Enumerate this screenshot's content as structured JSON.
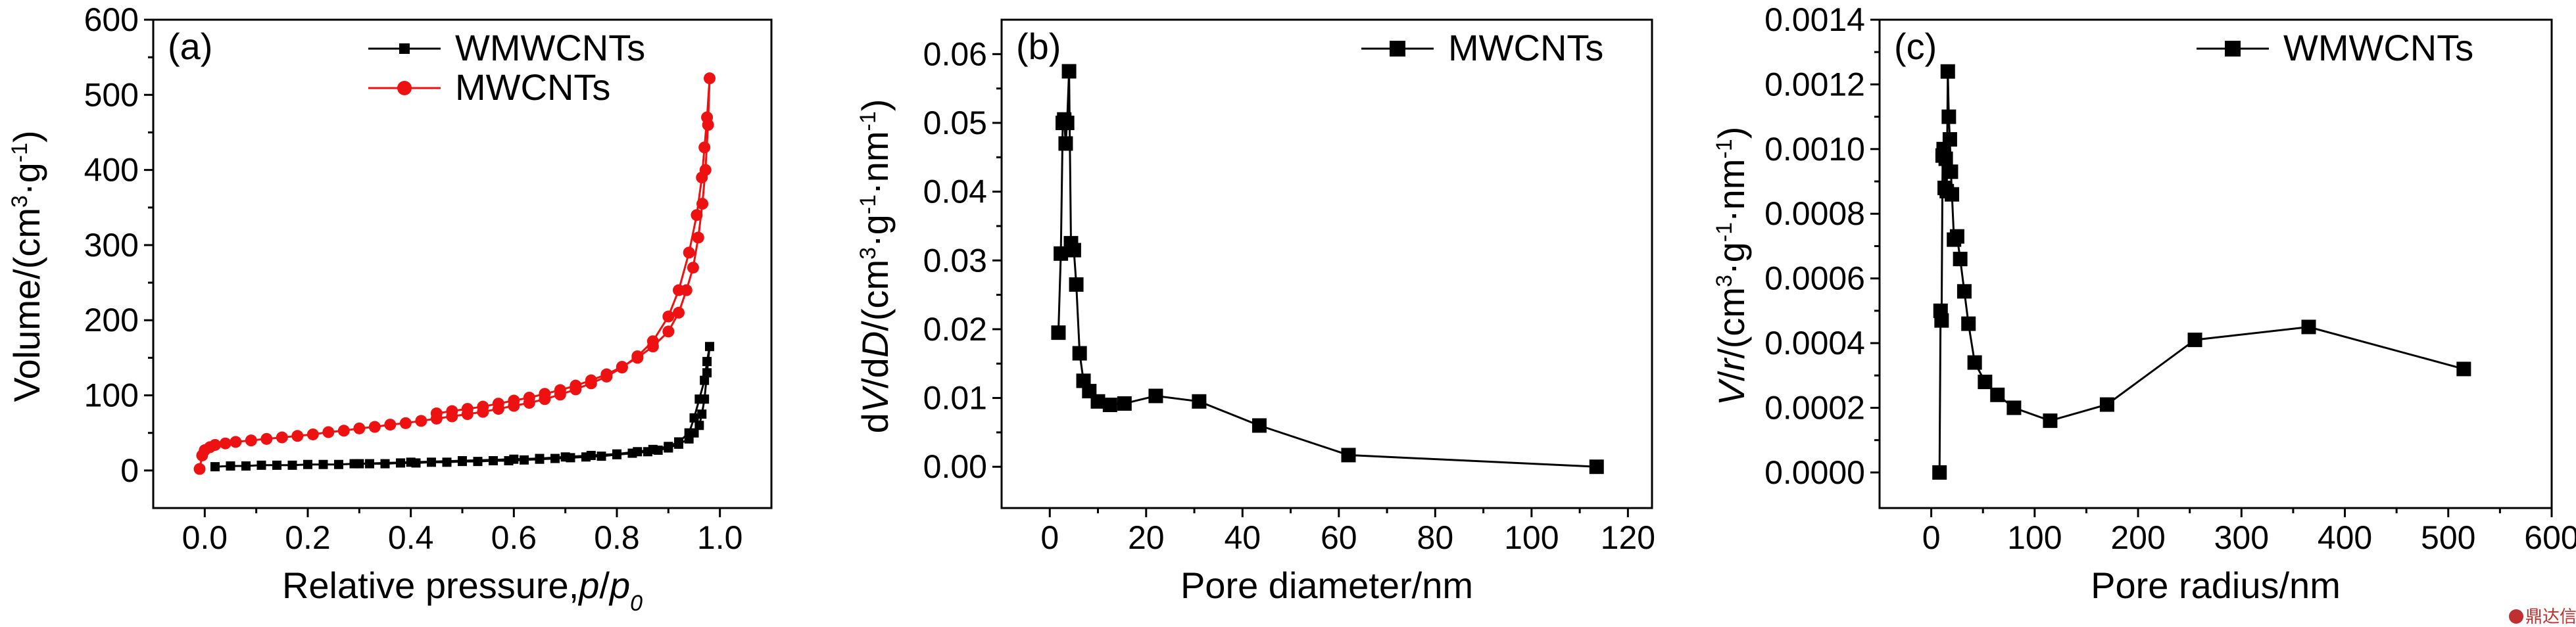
{
  "watermark": "鼎达信",
  "chart_data": [
    {
      "type": "line",
      "panel_label": "(a)",
      "xlabel_parts": [
        "Relative pressure,",
        "p",
        "/",
        "p",
        "0"
      ],
      "ylabel_parts": [
        "Volume/(cm",
        "3",
        "·g",
        "-1",
        ")"
      ],
      "xlim": [
        -0.1,
        1.1
      ],
      "ylim": [
        -50,
        600
      ],
      "xticks": [
        0.0,
        0.2,
        0.4,
        0.6,
        0.8,
        1.0
      ],
      "xtick_labels": [
        "0.0",
        "0.2",
        "0.4",
        "0.6",
        "0.8",
        "1.0"
      ],
      "yticks": [
        0,
        100,
        200,
        300,
        400,
        500,
        600
      ],
      "ytick_labels": [
        "0",
        "100",
        "200",
        "300",
        "400",
        "500",
        "600"
      ],
      "legend_position": "top-right",
      "series": [
        {
          "name": "WMWCNTs",
          "color": "#000000",
          "marker": "square",
          "x": [
            0.02,
            0.05,
            0.08,
            0.11,
            0.14,
            0.17,
            0.2,
            0.23,
            0.26,
            0.29,
            0.32,
            0.35,
            0.38,
            0.41,
            0.44,
            0.47,
            0.5,
            0.53,
            0.56,
            0.59,
            0.62,
            0.65,
            0.68,
            0.71,
            0.74,
            0.77,
            0.8,
            0.83,
            0.86,
            0.88,
            0.9,
            0.92,
            0.94,
            0.95,
            0.96,
            0.965,
            0.97,
            0.975,
            0.98,
            0.975,
            0.97,
            0.96,
            0.95,
            0.94,
            0.92,
            0.9,
            0.87,
            0.84,
            0.8,
            0.75,
            0.7,
            0.65,
            0.6,
            0.5,
            0.4,
            0.3
          ],
          "y": [
            5,
            6,
            6,
            7,
            7,
            7,
            8,
            8,
            8,
            9,
            9,
            9,
            10,
            10,
            11,
            11,
            12,
            12,
            13,
            13,
            14,
            15,
            16,
            17,
            18,
            19,
            21,
            23,
            25,
            27,
            30,
            35,
            42,
            50,
            60,
            75,
            95,
            130,
            165,
            145,
            120,
            95,
            70,
            50,
            38,
            32,
            28,
            25,
            22,
            20,
            18,
            16,
            15,
            13,
            11,
            9
          ]
        },
        {
          "name": "MWCNTs",
          "color": "#ee1111",
          "marker": "circle",
          "x": [
            -0.01,
            -0.005,
            0.0,
            0.01,
            0.02,
            0.04,
            0.06,
            0.09,
            0.12,
            0.15,
            0.18,
            0.21,
            0.24,
            0.27,
            0.3,
            0.33,
            0.36,
            0.39,
            0.42,
            0.45,
            0.48,
            0.51,
            0.54,
            0.57,
            0.6,
            0.63,
            0.66,
            0.69,
            0.72,
            0.75,
            0.78,
            0.81,
            0.84,
            0.87,
            0.9,
            0.92,
            0.94,
            0.955,
            0.965,
            0.97,
            0.975,
            0.98,
            0.977,
            0.972,
            0.966,
            0.958,
            0.948,
            0.935,
            0.92,
            0.9,
            0.87,
            0.84,
            0.81,
            0.78,
            0.75,
            0.72,
            0.69,
            0.66,
            0.63,
            0.6,
            0.57,
            0.54,
            0.51,
            0.48,
            0.45
          ],
          "y": [
            2,
            20,
            27,
            31,
            34,
            36,
            38,
            40,
            42,
            44,
            46,
            48,
            51,
            53,
            56,
            58,
            61,
            63,
            66,
            69,
            72,
            75,
            78,
            82,
            86,
            90,
            95,
            101,
            108,
            116,
            125,
            137,
            152,
            172,
            205,
            240,
            290,
            340,
            390,
            430,
            470,
            522,
            460,
            400,
            355,
            310,
            270,
            240,
            210,
            185,
            165,
            150,
            138,
            128,
            120,
            113,
            107,
            102,
            97,
            93,
            89,
            85,
            82,
            79,
            76
          ]
        }
      ]
    },
    {
      "type": "line",
      "panel_label": "(b)",
      "xlabel_parts": [
        "Pore diameter/nm"
      ],
      "ylabel_parts": [
        "d",
        "V",
        "/d",
        "D",
        "/(cm",
        "3",
        "·g",
        "-1",
        "·nm",
        "-1",
        ")"
      ],
      "xlim": [
        -10,
        125
      ],
      "ylim": [
        -0.006,
        0.065
      ],
      "xticks": [
        0,
        20,
        40,
        60,
        80,
        100,
        120
      ],
      "xtick_labels": [
        "0",
        "20",
        "40",
        "60",
        "80",
        "100",
        "120"
      ],
      "yticks": [
        0.0,
        0.01,
        0.02,
        0.03,
        0.04,
        0.05,
        0.06
      ],
      "ytick_labels": [
        "0.00",
        "0.01",
        "0.02",
        "0.03",
        "0.04",
        "0.05",
        "0.06"
      ],
      "legend_position": "top-right",
      "series": [
        {
          "name": "MWCNTs",
          "color": "#000000",
          "marker": "square",
          "x": [
            1.8,
            2.3,
            2.7,
            3.0,
            3.3,
            3.6,
            4.0,
            4.4,
            5.0,
            5.5,
            6.2,
            7.0,
            8.2,
            10.0,
            12.5,
            15.5,
            22.0,
            31.0,
            43.5,
            62.0,
            113.5
          ],
          "y": [
            0.0195,
            0.031,
            0.05,
            0.0505,
            0.047,
            0.05,
            0.0575,
            0.0325,
            0.0315,
            0.0265,
            0.0165,
            0.0125,
            0.011,
            0.0095,
            0.009,
            0.0092,
            0.0103,
            0.0095,
            0.006,
            0.0017,
            0.0
          ]
        }
      ]
    },
    {
      "type": "line",
      "panel_label": "(c)",
      "xlabel_parts": [
        "Pore radius/nm"
      ],
      "ylabel_parts": [
        "V",
        "/",
        "r",
        "/(cm",
        "3",
        "·g",
        "-1",
        "·nm",
        "-1",
        ")"
      ],
      "xlim": [
        -50,
        600
      ],
      "ylim": [
        -0.00011,
        0.0014
      ],
      "xticks": [
        0,
        100,
        200,
        300,
        400,
        500,
        600
      ],
      "xtick_labels": [
        "0",
        "100",
        "200",
        "300",
        "400",
        "500",
        "600"
      ],
      "yticks": [
        0.0,
        0.0002,
        0.0004,
        0.0006,
        0.0008,
        0.001,
        0.0012,
        0.0014
      ],
      "ytick_labels": [
        "0.0000",
        "0.0002",
        "0.0004",
        "0.0006",
        "0.0008",
        "0.0010",
        "0.0012",
        "0.0014"
      ],
      "legend_position": "top-right",
      "series": [
        {
          "name": "WMWCNTs",
          "color": "#000000",
          "marker": "square",
          "x": [
            8,
            9,
            10,
            11,
            12,
            13,
            14,
            15,
            16,
            17,
            18,
            19,
            20,
            22,
            25,
            28,
            32,
            36,
            42,
            52,
            64,
            80,
            115,
            170,
            255,
            365,
            515
          ],
          "y": [
            0.0,
            0.0005,
            0.00047,
            0.00098,
            0.001,
            0.00088,
            0.00097,
            0.00087,
            0.00124,
            0.0011,
            0.00103,
            0.00093,
            0.00086,
            0.00072,
            0.00073,
            0.00066,
            0.00056,
            0.00046,
            0.00034,
            0.00028,
            0.00024,
            0.0002,
            0.00016,
            0.00021,
            0.00041,
            0.00045,
            0.00032
          ]
        }
      ]
    }
  ]
}
